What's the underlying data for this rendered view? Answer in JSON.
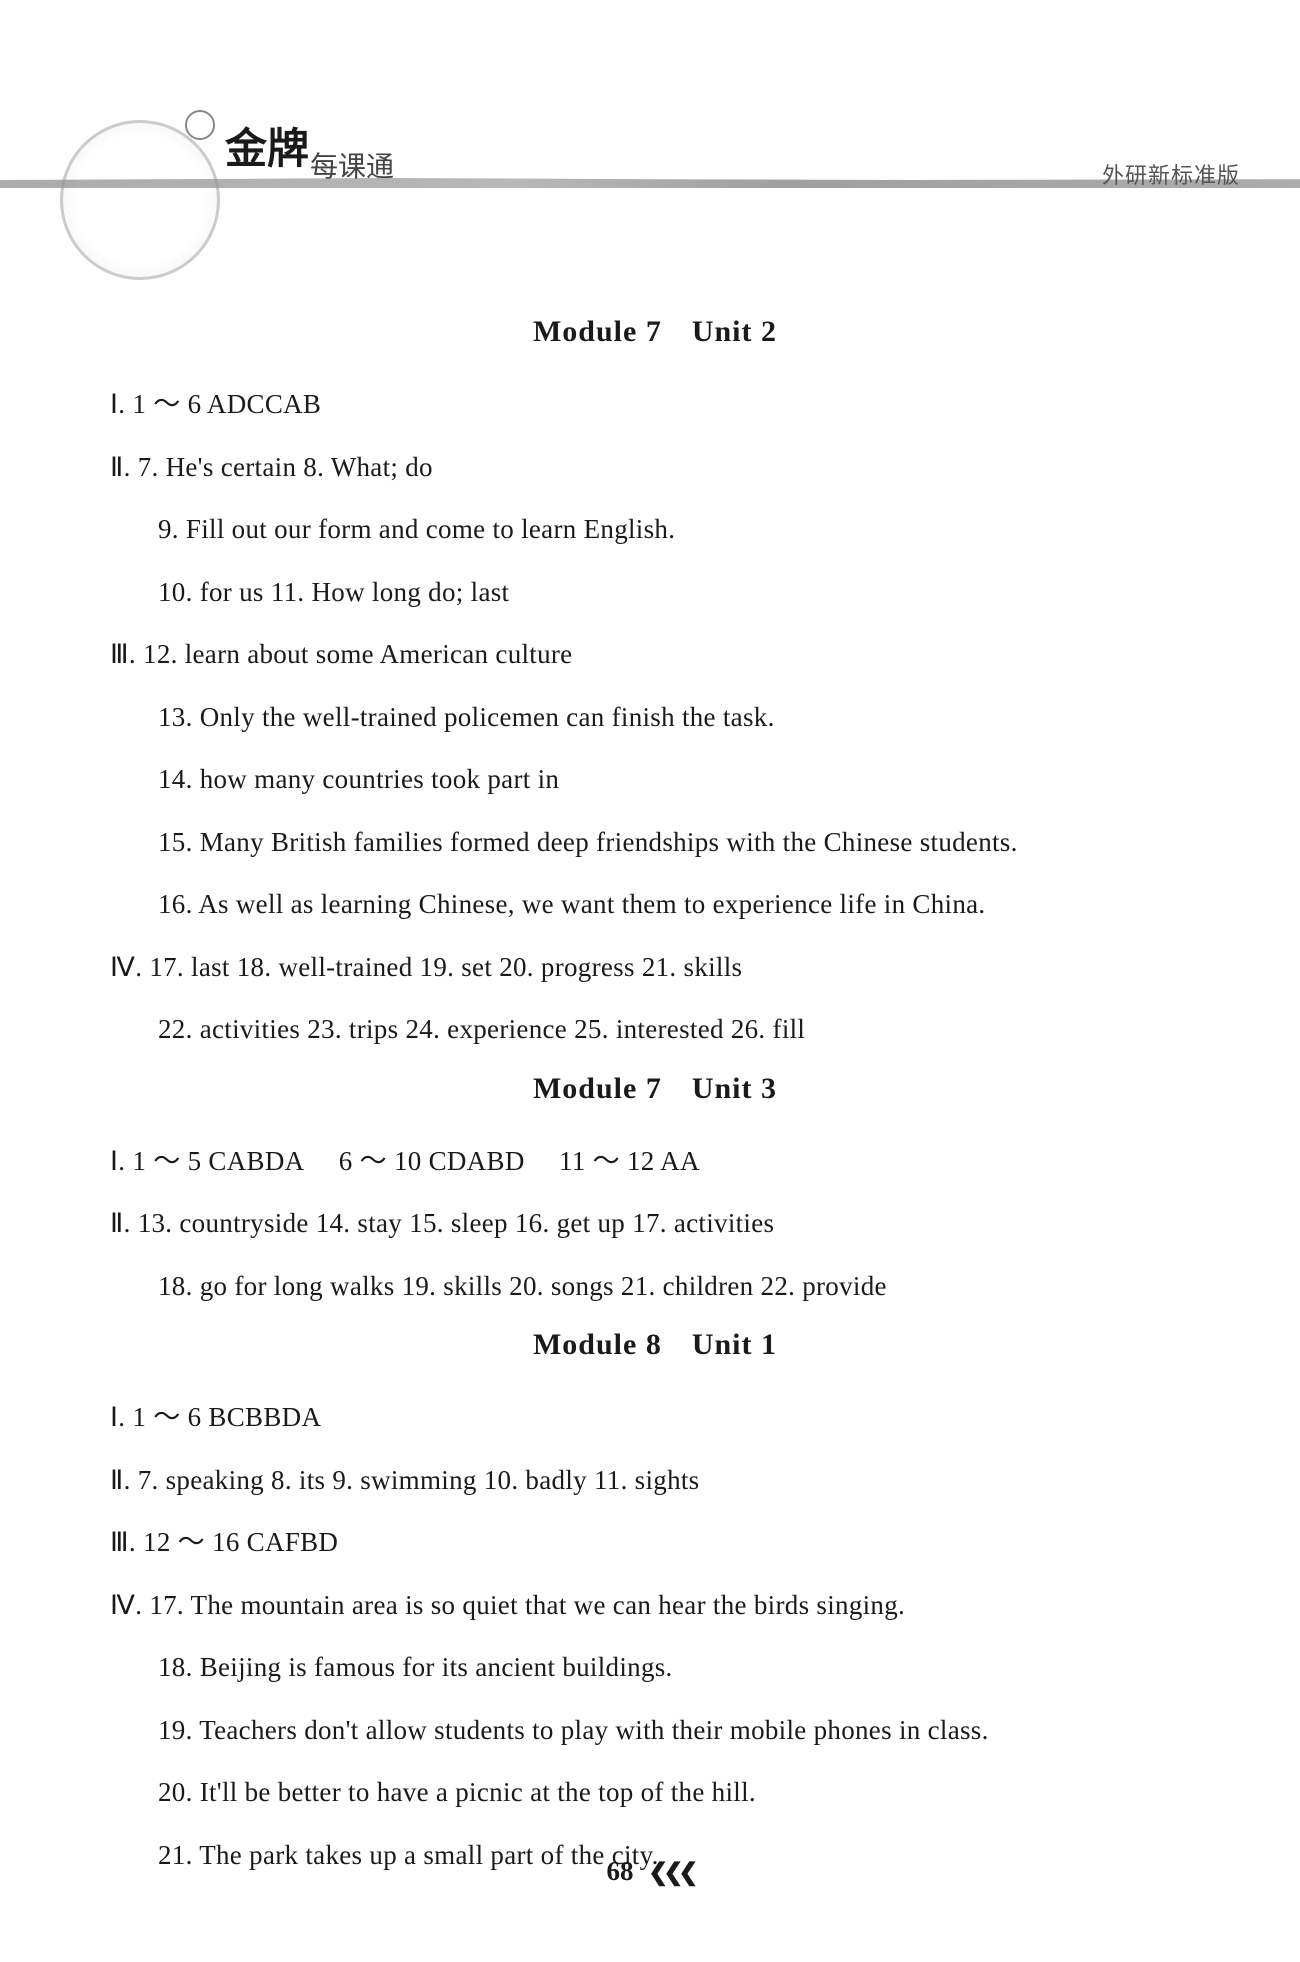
{
  "header": {
    "brand": "金牌",
    "subtitle": "每课通",
    "edition": "外研新标准版"
  },
  "sections": [
    {
      "title_left": "Module 7",
      "title_right": "Unit 2",
      "lines": [
        {
          "text": "Ⅰ. 1 ～ 6 ADCCAB",
          "indent": false
        },
        {
          "text": "Ⅱ. 7. He's certain 8. What; do",
          "indent": false
        },
        {
          "text": "9. Fill out our form and come to learn English.",
          "indent": true
        },
        {
          "text": "10. for us 11. How long do; last",
          "indent": true
        },
        {
          "text": "Ⅲ. 12. learn about some American culture",
          "indent": false
        },
        {
          "text": "13. Only the well-trained policemen can finish the task.",
          "indent": true
        },
        {
          "text": "14. how many countries took part in",
          "indent": true
        },
        {
          "text": "15. Many British families formed deep friendships with the Chinese students.",
          "indent": true
        },
        {
          "text": "16. As well as learning Chinese, we want them to experience life in China.",
          "indent": true
        },
        {
          "text": "Ⅳ. 17. last 18. well-trained 19. set 20. progress 21. skills",
          "indent": false
        },
        {
          "text": "22. activities 23. trips 24. experience 25. interested 26. fill",
          "indent": true
        }
      ]
    },
    {
      "title_left": "Module 7",
      "title_right": "Unit 3",
      "lines": [
        {
          "text": "Ⅰ. 1 ～ 5 CABDA  6 ～ 10 CDABD  11 ～ 12 AA",
          "indent": false
        },
        {
          "text": "Ⅱ. 13. countryside 14. stay 15. sleep 16. get up 17. activities",
          "indent": false
        },
        {
          "text": "18. go for long walks 19. skills 20. songs 21. children 22. provide",
          "indent": true
        }
      ]
    },
    {
      "title_left": "Module 8",
      "title_right": "Unit 1",
      "lines": [
        {
          "text": "Ⅰ. 1 ～ 6 BCBBDA",
          "indent": false
        },
        {
          "text": "Ⅱ. 7. speaking 8. its 9. swimming 10. badly 11. sights",
          "indent": false
        },
        {
          "text": "Ⅲ. 12 ～ 16 CAFBD",
          "indent": false
        },
        {
          "text": "Ⅳ. 17. The mountain area is so quiet that we can hear the birds singing.",
          "indent": false
        },
        {
          "text": "18. Beijing is famous for its ancient buildings.",
          "indent": true
        },
        {
          "text": "19. Teachers don't allow students to play with their mobile phones in class.",
          "indent": true
        },
        {
          "text": "20. It'll be better to have a picnic at the top of the hill.",
          "indent": true
        },
        {
          "text": "21. The park takes up a small part of the city.",
          "indent": true
        }
      ]
    }
  ],
  "page_number": "68",
  "page_arrow": "❮❮❮"
}
